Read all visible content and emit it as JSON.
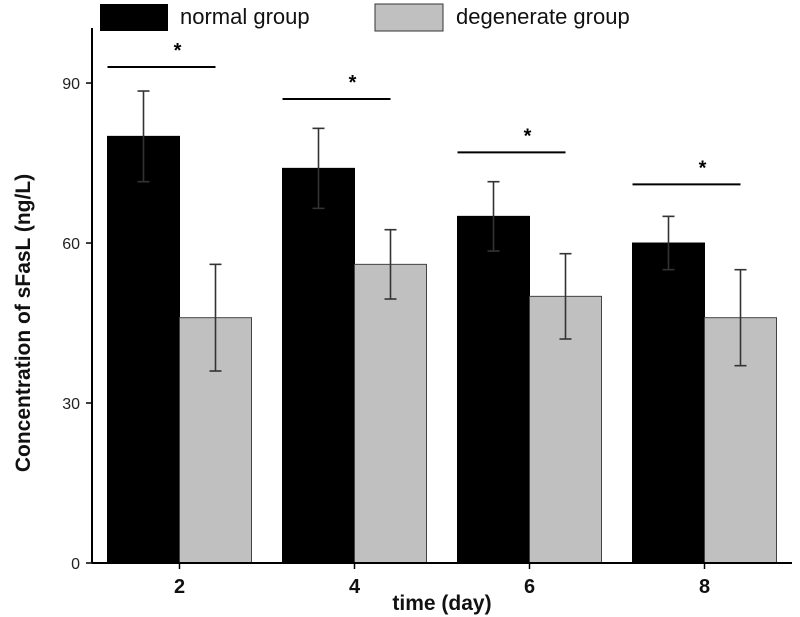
{
  "chart_data": {
    "type": "bar",
    "title": "",
    "xlabel": "time (day)",
    "ylabel": "Concentration of sFasL (ng/L)",
    "categories": [
      "2",
      "4",
      "6",
      "8"
    ],
    "ylim": [
      0,
      100
    ],
    "yticks": [
      "0",
      "30",
      "60",
      "90"
    ],
    "grid": false,
    "legend_position": "top",
    "series": [
      {
        "name": "normal group",
        "color": "#000000",
        "values": [
          80,
          74,
          65,
          60
        ],
        "errors": [
          8.5,
          7.5,
          6.5,
          5
        ]
      },
      {
        "name": "degenerate group",
        "color": "#c0c0c0",
        "values": [
          46,
          56,
          50,
          46
        ],
        "errors": [
          10,
          6.5,
          8,
          9
        ]
      }
    ],
    "significance": [
      "*",
      "*",
      "*",
      "*"
    ],
    "significance_y": [
      93,
      87,
      77,
      71
    ]
  }
}
